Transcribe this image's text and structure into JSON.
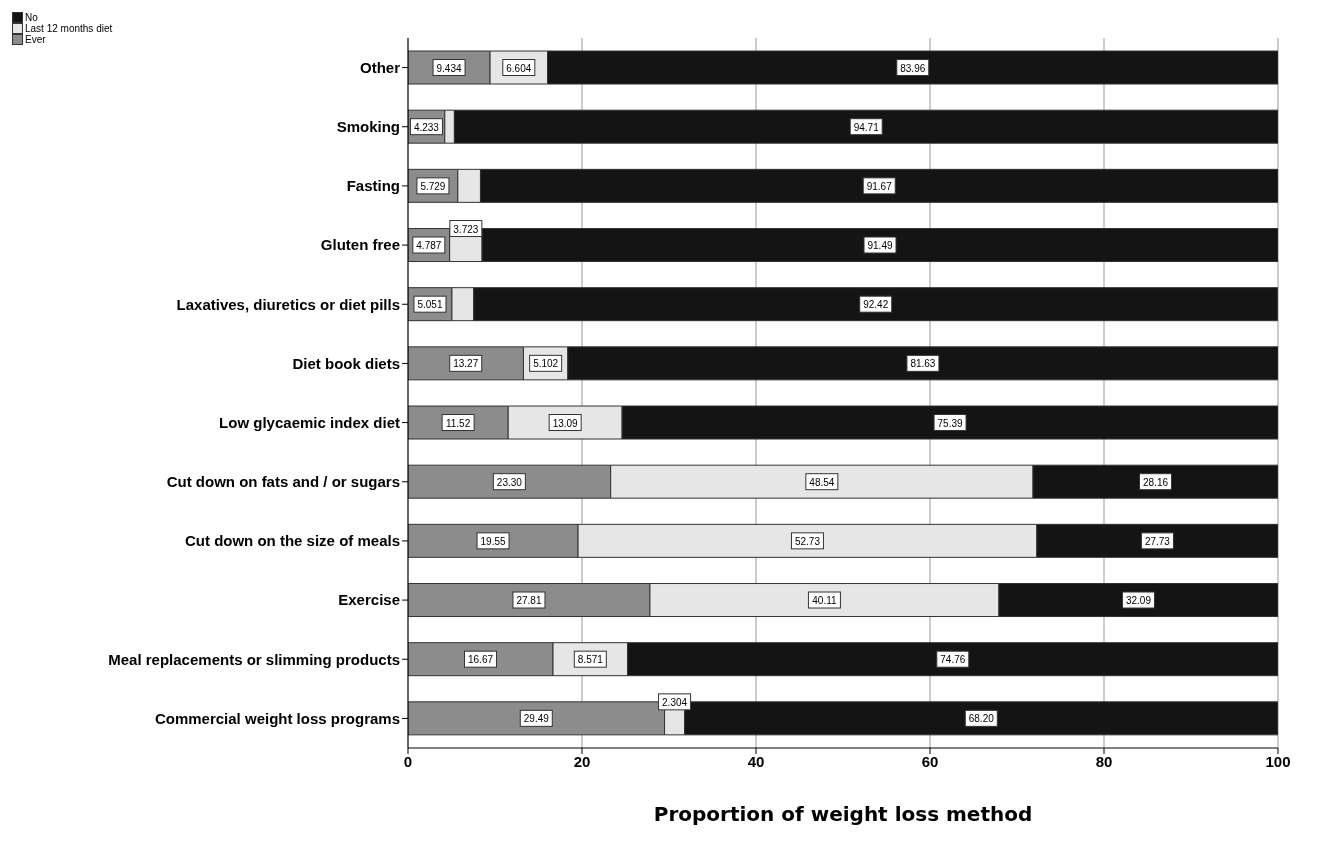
{
  "chart_data": {
    "type": "bar",
    "orientation": "horizontal",
    "stacked": true,
    "xlabel": "Proportion of weight loss method",
    "categories": [
      "Other",
      "Smoking",
      "Fasting",
      "Gluten free",
      "Laxatives, diuretics or diet pills",
      "Diet book diets",
      "Low glycaemic index diet",
      "Cut down on fats and / or sugars",
      "Cut down on the size of meals",
      "Exercise",
      "Meal replacements or slimming products",
      "Commercial weight loss programs"
    ],
    "series": [
      {
        "name": "Ever",
        "color": "#8c8c8c",
        "values": [
          9.434,
          4.233,
          5.729,
          4.787,
          5.051,
          13.27,
          11.52,
          23.3,
          19.55,
          27.81,
          16.67,
          29.49
        ],
        "value_labels": [
          "9.434",
          "4.233",
          "5.729",
          "4.787",
          "5.051",
          "13.27",
          "11.52",
          "23.30",
          "19.55",
          "27.81",
          "16.67",
          "29.49"
        ]
      },
      {
        "name": "Last 12 months diet",
        "color": "#e6e6e6",
        "values": [
          6.604,
          1.1,
          2.6,
          3.723,
          2.5,
          5.102,
          13.09,
          48.54,
          52.73,
          40.11,
          8.571,
          2.304
        ],
        "value_labels": [
          "6.604",
          null,
          null,
          "3.723",
          null,
          "5.102",
          "13.09",
          "48.54",
          "52.73",
          "40.11",
          "8.571",
          "2.304"
        ]
      },
      {
        "name": "No",
        "color": "#141414",
        "values": [
          83.96,
          94.71,
          91.67,
          91.49,
          92.42,
          81.63,
          75.39,
          28.16,
          27.73,
          32.09,
          74.76,
          68.2
        ],
        "value_labels": [
          "83.96",
          "94.71",
          "91.67",
          "91.49",
          "92.42",
          "81.63",
          "75.39",
          "28.16",
          "27.73",
          "32.09",
          "74.76",
          "68.20"
        ]
      }
    ],
    "xlim": [
      0,
      100
    ],
    "xticks": [
      0,
      20,
      40,
      60,
      80,
      100
    ],
    "grid": "x",
    "legend": "top left"
  }
}
